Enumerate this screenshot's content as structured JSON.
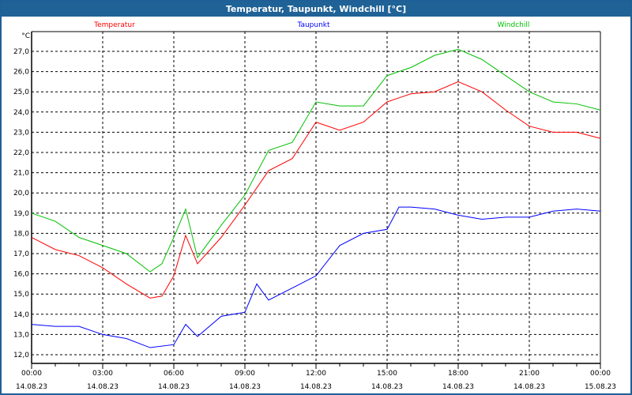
{
  "window": {
    "title": "Temperatur, Taupunkt, Windchill [°C]"
  },
  "chart_data": {
    "type": "line",
    "title": "Temperatur, Taupunkt, Windchill [°C]",
    "ylabel": "°C",
    "ylim": [
      11.6,
      28.0
    ],
    "xlim": [
      0,
      24
    ],
    "grid": true,
    "legend_placement": "top",
    "yticks": [
      12,
      13,
      14,
      15,
      16,
      17,
      18,
      19,
      20,
      21,
      22,
      23,
      24,
      25,
      26,
      27
    ],
    "ytick_labels": [
      "12,0",
      "13,0",
      "14,0",
      "15,0",
      "16,0",
      "17,0",
      "18,0",
      "19,0",
      "20,0",
      "21,0",
      "22,0",
      "23,0",
      "24,0",
      "25,0",
      "26,0",
      "27,0"
    ],
    "xticks": [
      0,
      3,
      6,
      9,
      12,
      15,
      18,
      21,
      24
    ],
    "xtick_labels": [
      [
        "00:00",
        "14.08.23"
      ],
      [
        "03:00",
        "14.08.23"
      ],
      [
        "06:00",
        "14.08.23"
      ],
      [
        "09:00",
        "14.08.23"
      ],
      [
        "12:00",
        "14.08.23"
      ],
      [
        "15:00",
        "14.08.23"
      ],
      [
        "18:00",
        "14.08.23"
      ],
      [
        "21:00",
        "14.08.23"
      ],
      [
        "00:00",
        "15.08.23"
      ]
    ],
    "series": [
      {
        "name": "Temperatur",
        "color": "#ff0000",
        "x": [
          0,
          1,
          2,
          3,
          4,
          5,
          5.5,
          6,
          6.5,
          7,
          8,
          9,
          10,
          11,
          12,
          13,
          14,
          15,
          16,
          17,
          18,
          19,
          20,
          21,
          22,
          23,
          24
        ],
        "y": [
          17.8,
          17.2,
          16.9,
          16.3,
          15.5,
          14.8,
          14.9,
          15.9,
          17.9,
          16.5,
          17.8,
          19.4,
          21.1,
          21.7,
          23.5,
          23.1,
          23.5,
          24.5,
          24.9,
          25.0,
          25.5,
          25.0,
          24.1,
          23.3,
          23.0,
          23.0,
          22.7
        ]
      },
      {
        "name": "Taupunkt",
        "color": "#0000ff",
        "x": [
          0,
          1,
          2,
          3,
          4,
          5,
          6,
          6.5,
          7,
          8,
          9,
          9.5,
          10,
          11,
          12,
          13,
          14,
          15,
          15.5,
          16,
          17,
          18,
          19,
          20,
          21,
          22,
          23,
          24
        ],
        "y": [
          13.5,
          13.4,
          13.4,
          13.0,
          12.8,
          12.35,
          12.5,
          13.5,
          12.9,
          13.9,
          14.1,
          15.5,
          14.7,
          15.3,
          15.9,
          17.4,
          18.0,
          18.2,
          19.3,
          19.3,
          19.2,
          18.9,
          18.7,
          18.8,
          18.8,
          19.1,
          19.2,
          19.1
        ]
      },
      {
        "name": "Windchill",
        "color": "#00c000",
        "x": [
          0,
          1,
          2,
          3,
          4,
          5,
          5.5,
          6,
          6.5,
          7,
          8,
          9,
          10,
          11,
          12,
          13,
          14,
          15,
          16,
          17,
          18,
          19,
          20,
          21,
          22,
          23,
          24
        ],
        "y": [
          19.0,
          18.6,
          17.8,
          17.4,
          17.0,
          16.1,
          16.5,
          17.8,
          19.2,
          16.8,
          18.4,
          19.9,
          22.1,
          22.5,
          24.5,
          24.3,
          24.3,
          25.8,
          26.2,
          26.8,
          27.1,
          26.6,
          25.8,
          25.0,
          24.5,
          24.4,
          24.1
        ]
      }
    ]
  }
}
